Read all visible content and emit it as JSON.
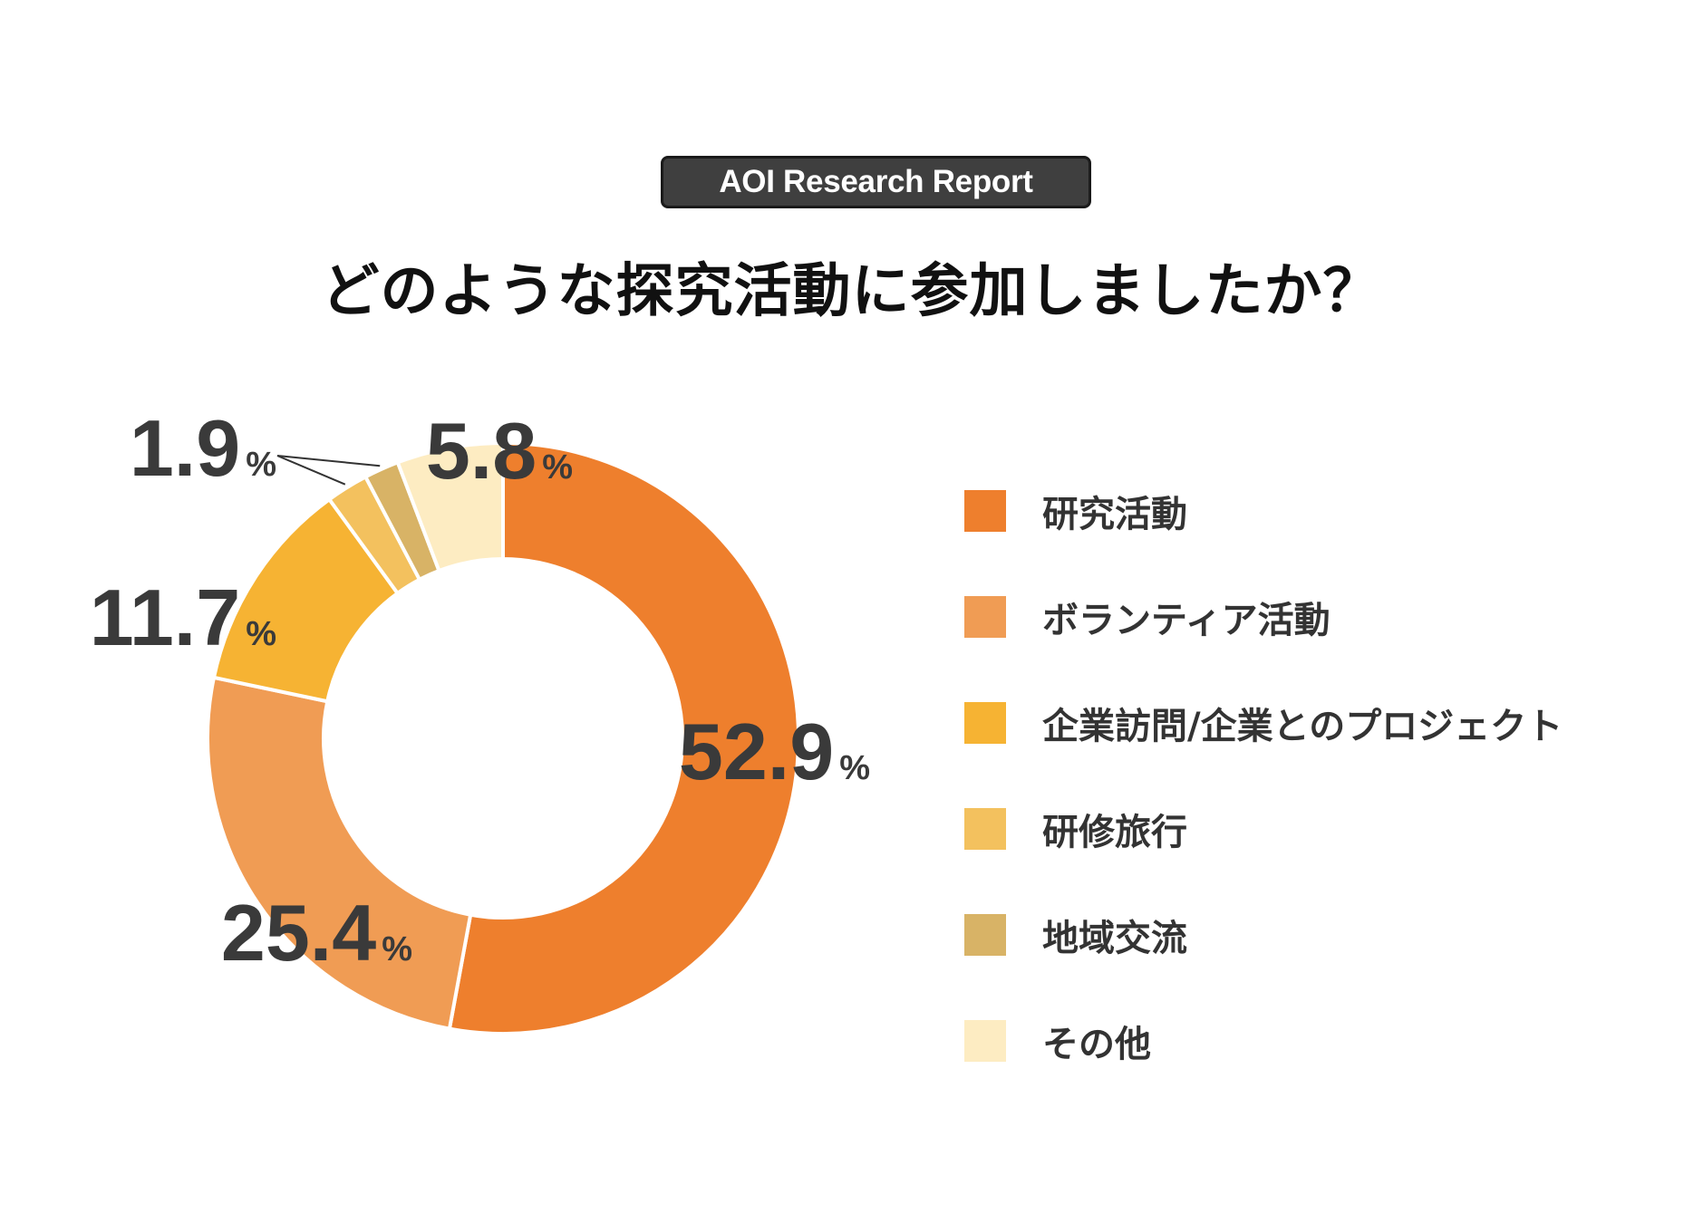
{
  "badge": "AOI Research Report",
  "title": "どのような探究活動に参加しましたか？",
  "chart_data": {
    "type": "pie",
    "title": "どのような探究活動に参加しましたか？",
    "unit": "%",
    "categories": [
      "研究活動",
      "ボランティア活動",
      "企業訪問/企業とのプロジェクト",
      "研修旅行",
      "地域交流",
      "その他"
    ],
    "values": [
      52.9,
      25.4,
      11.7,
      2.3,
      1.9,
      5.8
    ],
    "value_labels": [
      "52.9",
      "25.4",
      "11.7",
      "",
      "1.9",
      "5.8"
    ],
    "colors": [
      "#EE7F2D",
      "#F09C54",
      "#F6B333",
      "#F3C15E",
      "#D8B366",
      "#FDECC2"
    ],
    "legend_position": "right",
    "donut": true
  }
}
